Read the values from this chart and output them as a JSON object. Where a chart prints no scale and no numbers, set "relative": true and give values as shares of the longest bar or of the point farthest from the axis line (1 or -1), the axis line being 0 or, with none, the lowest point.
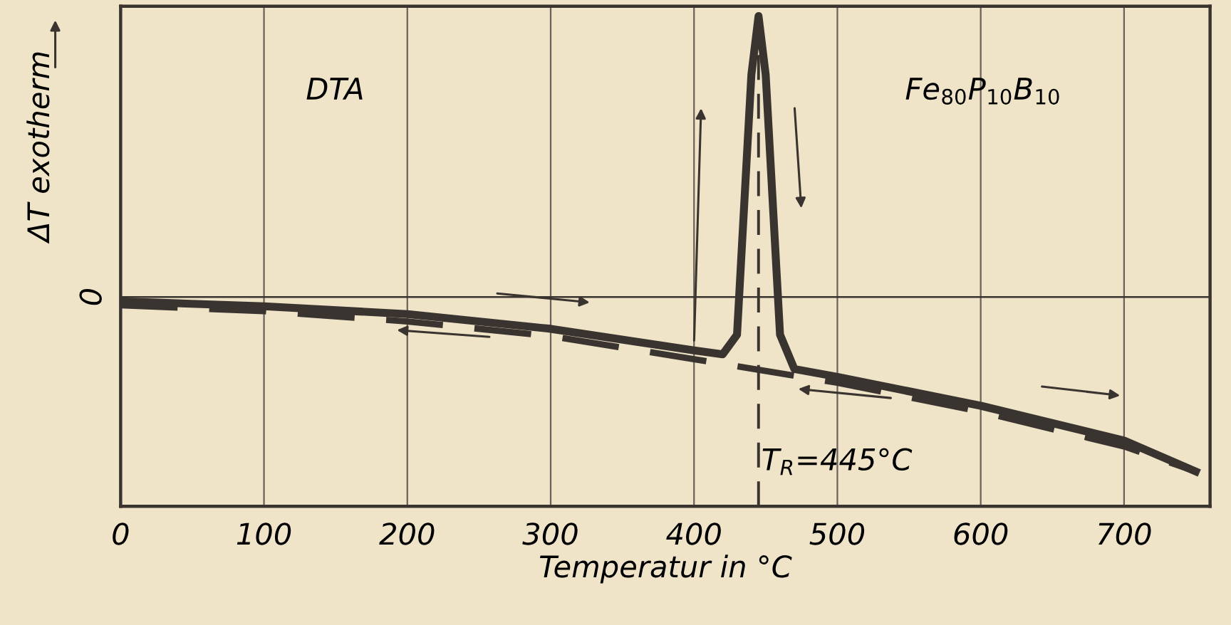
{
  "chart_data": {
    "type": "line",
    "relative": true,
    "xlabel": "Temperatur in °C",
    "ylabel": "ΔT exotherm",
    "xlim": [
      0,
      760
    ],
    "xticks": [
      0,
      100,
      200,
      300,
      400,
      500,
      600,
      700
    ],
    "grid": "x",
    "tick_labels": "x",
    "series": [
      {
        "color": "#3a3430",
        "line_style": "solid",
        "x": [
          0,
          100,
          200,
          300,
          400,
          420,
          430,
          440,
          445,
          450,
          460,
          470,
          500,
          600,
          700,
          750
        ],
        "values": [
          0.418,
          0.408,
          0.392,
          0.362,
          0.318,
          0.31,
          0.35,
          0.88,
          1.0,
          0.88,
          0.35,
          0.28,
          0.264,
          0.205,
          0.134,
          0.071
        ]
      },
      {
        "color": "#3a3430",
        "line_style": "dashed",
        "x": [
          0,
          100,
          200,
          300,
          400,
          500,
          600,
          700,
          750
        ],
        "values": [
          0.41,
          0.398,
          0.377,
          0.347,
          0.3,
          0.252,
          0.193,
          0.122,
          0.071
        ]
      }
    ],
    "ref_lines": [
      {
        "axis": "y",
        "value": 0.427,
        "label": "0",
        "color": "#3a3430",
        "line_style": "solid"
      },
      {
        "axis": "x",
        "value": 445,
        "label": "T$_{R}$=445°C",
        "color": "#3a3430",
        "line_style": "dashed"
      }
    ],
    "annotations": [
      "DTA",
      "Fe$_{80}$P$_{10}$B$_{10}$"
    ]
  }
}
